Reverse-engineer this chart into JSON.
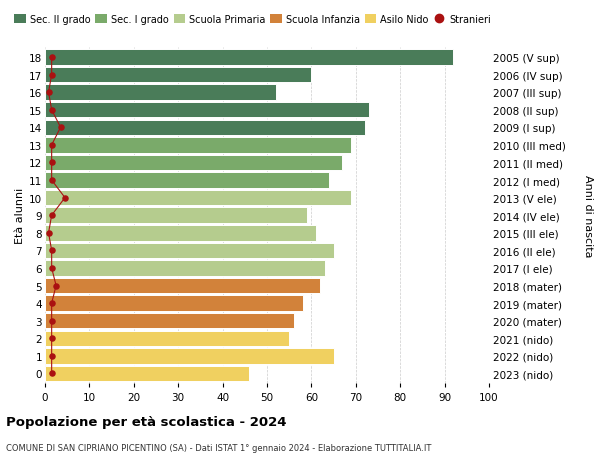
{
  "ages": [
    18,
    17,
    16,
    15,
    14,
    13,
    12,
    11,
    10,
    9,
    8,
    7,
    6,
    5,
    4,
    3,
    2,
    1,
    0
  ],
  "values": [
    92,
    60,
    52,
    73,
    72,
    69,
    67,
    64,
    69,
    59,
    61,
    65,
    63,
    62,
    58,
    56,
    55,
    65,
    46
  ],
  "right_labels": [
    "2005 (V sup)",
    "2006 (IV sup)",
    "2007 (III sup)",
    "2008 (II sup)",
    "2009 (I sup)",
    "2010 (III med)",
    "2011 (II med)",
    "2012 (I med)",
    "2013 (V ele)",
    "2014 (IV ele)",
    "2015 (III ele)",
    "2016 (II ele)",
    "2017 (I ele)",
    "2018 (mater)",
    "2019 (mater)",
    "2020 (mater)",
    "2021 (nido)",
    "2022 (nido)",
    "2023 (nido)"
  ],
  "stranieri_x": [
    1.5,
    1.5,
    0.8,
    1.5,
    3.5,
    1.5,
    1.5,
    1.5,
    4.5,
    1.5,
    0.8,
    1.5,
    1.5,
    2.5,
    1.5,
    1.5,
    1.5,
    1.5,
    1.5
  ],
  "bar_colors": [
    "#4a7c59",
    "#4a7c59",
    "#4a7c59",
    "#4a7c59",
    "#4a7c59",
    "#7aaa6a",
    "#7aaa6a",
    "#7aaa6a",
    "#b5cc8e",
    "#b5cc8e",
    "#b5cc8e",
    "#b5cc8e",
    "#b5cc8e",
    "#d2823a",
    "#d2823a",
    "#d2823a",
    "#f0d060",
    "#f0d060",
    "#f0d060"
  ],
  "legend_labels": [
    "Sec. II grado",
    "Sec. I grado",
    "Scuola Primaria",
    "Scuola Infanzia",
    "Asilo Nido",
    "Stranieri"
  ],
  "legend_colors_list": [
    "#4a7c59",
    "#7aaa6a",
    "#b5cc8e",
    "#d2823a",
    "#f0d060",
    "#aa1111"
  ],
  "ylabel_left": "Età alunni",
  "ylabel_right": "Anni di nascita",
  "title": "Popolazione per età scolastica - 2024",
  "subtitle": "COMUNE DI SAN CIPRIANO PICENTINO (SA) - Dati ISTAT 1° gennaio 2024 - Elaborazione TUTTITALIA.IT",
  "xlim": [
    0,
    100
  ],
  "xticks": [
    0,
    10,
    20,
    30,
    40,
    50,
    60,
    70,
    80,
    90,
    100
  ],
  "background_color": "#ffffff",
  "grid_color": "#cccccc",
  "stranieri_color": "#aa1111"
}
